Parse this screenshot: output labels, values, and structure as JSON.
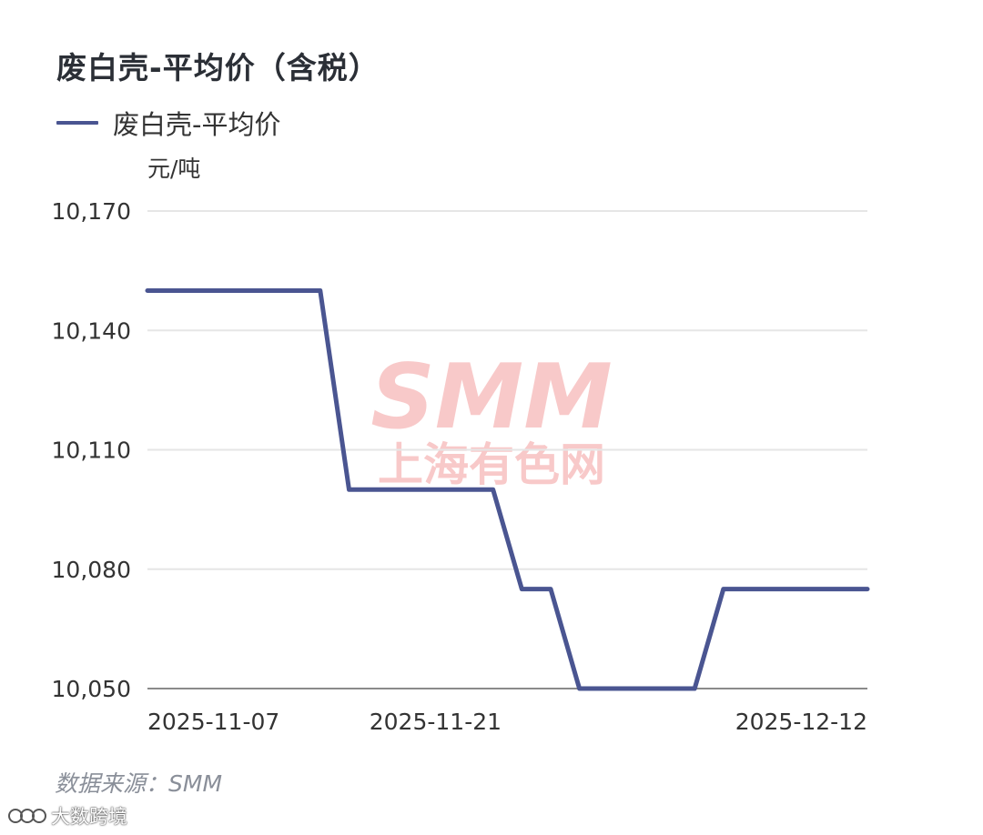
{
  "title": "废白壳-平均价（含税）",
  "legend": {
    "series_label": "废白壳-平均价"
  },
  "unit_label": "元/吨",
  "source_text": "数据来源：SMM",
  "watermark": {
    "logo_text": "SMM",
    "subtitle": "上海有色网"
  },
  "corner_badge": {
    "text": "大数跨境"
  },
  "colors": {
    "line": "#4a5591",
    "grid": "#e6e6e6",
    "axis": "#8a8a8a",
    "watermark": "#f6b8b8"
  },
  "chart_data": {
    "type": "line",
    "title": "废白壳-平均价（含税）",
    "ylabel": "元/吨",
    "ylim": [
      10050,
      10170
    ],
    "yticks": [
      10050,
      10080,
      10110,
      10140,
      10170
    ],
    "ytick_labels": [
      "10,050",
      "10,080",
      "10,110",
      "10,140",
      "10,170"
    ],
    "xtick_labels": [
      "2025-11-07",
      "2025-11-21",
      "2025-12-12"
    ],
    "x": [
      "2025-11-07",
      "2025-11-10",
      "2025-11-11",
      "2025-11-12",
      "2025-11-13",
      "2025-11-14",
      "2025-11-17",
      "2025-11-18",
      "2025-11-19",
      "2025-11-20",
      "2025-11-21",
      "2025-11-24",
      "2025-11-25",
      "2025-11-26",
      "2025-11-27",
      "2025-11-28",
      "2025-12-01",
      "2025-12-02",
      "2025-12-03",
      "2025-12-04",
      "2025-12-05",
      "2025-12-08",
      "2025-12-09",
      "2025-12-10",
      "2025-12-11",
      "2025-12-12"
    ],
    "series": [
      {
        "name": "废白壳-平均价",
        "values": [
          10150,
          10150,
          10150,
          10150,
          10150,
          10150,
          10150,
          10100,
          10100,
          10100,
          10100,
          10100,
          10100,
          10075,
          10075,
          10050,
          10050,
          10050,
          10050,
          10050,
          10075,
          10075,
          10075,
          10075,
          10075,
          10075
        ]
      }
    ],
    "grid": true,
    "legend_position": "top-left"
  }
}
